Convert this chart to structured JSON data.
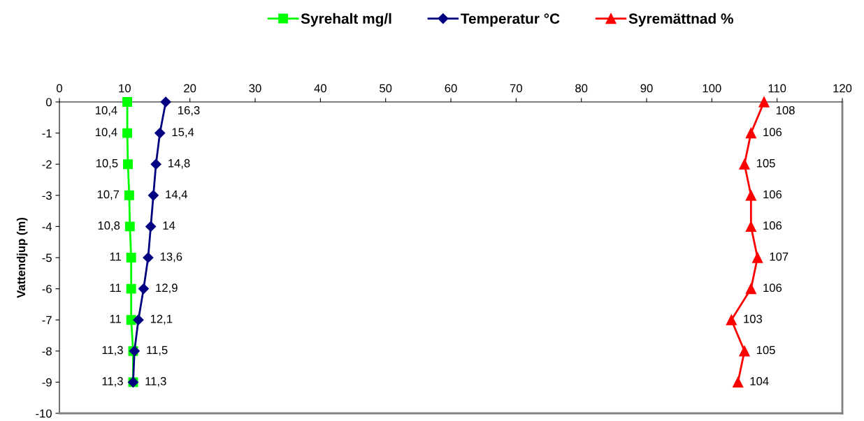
{
  "chart_data": {
    "type": "line",
    "orientation": "horizontal",
    "ylabel": "Vattendjup (m)",
    "xlim": [
      0,
      120
    ],
    "xticks": [
      0,
      10,
      20,
      30,
      40,
      50,
      60,
      70,
      80,
      90,
      100,
      110,
      120
    ],
    "ylim": [
      -10,
      0
    ],
    "yticks": [
      -10,
      -9,
      -8,
      -7,
      -6,
      -5,
      -4,
      -3,
      -2,
      -1,
      0
    ],
    "grid": false,
    "legend": "top",
    "series": [
      {
        "name": "Syrehalt mg/l",
        "color": "#00ff00",
        "marker": "square",
        "x": [
          0,
          -1,
          -2,
          -3,
          -4,
          -5,
          -6,
          -7,
          -8,
          -9
        ],
        "values": [
          10.4,
          10.4,
          10.5,
          10.7,
          10.8,
          11,
          11,
          11,
          11.3,
          11.3
        ],
        "value_labels": [
          "10,4",
          "10,4",
          "10,5",
          "10,7",
          "10,8",
          "11",
          "11",
          "11",
          "11,3",
          "11,3"
        ]
      },
      {
        "name": "Temperatur °C",
        "color": "#000080",
        "marker": "diamond",
        "x": [
          0,
          -1,
          -2,
          -3,
          -4,
          -5,
          -6,
          -7,
          -8,
          -9
        ],
        "values": [
          16.3,
          15.4,
          14.8,
          14.4,
          14,
          13.6,
          12.9,
          12.1,
          11.5,
          11.3
        ],
        "value_labels": [
          "16,3",
          "15,4",
          "14,8",
          "14,4",
          "14",
          "13,6",
          "12,9",
          "12,1",
          "11,5",
          "11,3"
        ]
      },
      {
        "name": "Syremättnad %",
        "color": "#ff0000",
        "marker": "triangle",
        "x": [
          0,
          -1,
          -2,
          -3,
          -4,
          -5,
          -6,
          -7,
          -8,
          -9
        ],
        "values": [
          108,
          106,
          105,
          106,
          106,
          107,
          106,
          103,
          105,
          104
        ],
        "value_labels": [
          "108",
          "106",
          "105",
          "106",
          "106",
          "107",
          "106",
          "103",
          "105",
          "104"
        ]
      }
    ]
  }
}
